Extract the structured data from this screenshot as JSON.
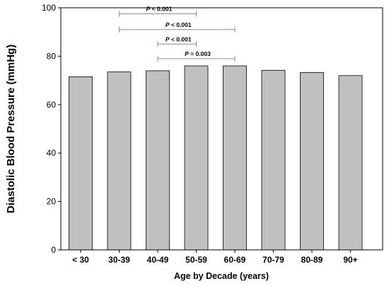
{
  "chart_data": {
    "type": "bar",
    "categories": [
      "< 30",
      "30-39",
      "40-49",
      "50-59",
      "60-69",
      "70-79",
      "80-89",
      "90+"
    ],
    "values": [
      71.5,
      73.5,
      74,
      76,
      76,
      74.2,
      73.3,
      72
    ],
    "xlabel": "Age by Decade (years)",
    "ylabel": "Diastolic Blood Pressure (mmHg)",
    "ylim": [
      0,
      100
    ],
    "yticks": [
      "0",
      "20",
      "40",
      "60",
      "80",
      "100"
    ],
    "grid": false,
    "colors": {
      "bar_fill": "#c0c0c0",
      "bar_stroke": "#000000",
      "bracket": "#6f8fd0"
    },
    "annotations": [
      {
        "from": "30-39",
        "to": "50-59",
        "level": 97.5,
        "label": "P < 0.001"
      },
      {
        "from": "30-39",
        "to": "60-69",
        "level": 91,
        "label": "P < 0.001"
      },
      {
        "from": "40-49",
        "to": "50-59",
        "level": 85,
        "label": "P < 0.001"
      },
      {
        "from": "40-49",
        "to": "60-69",
        "level": 79,
        "label": "P = 0.003"
      }
    ]
  }
}
